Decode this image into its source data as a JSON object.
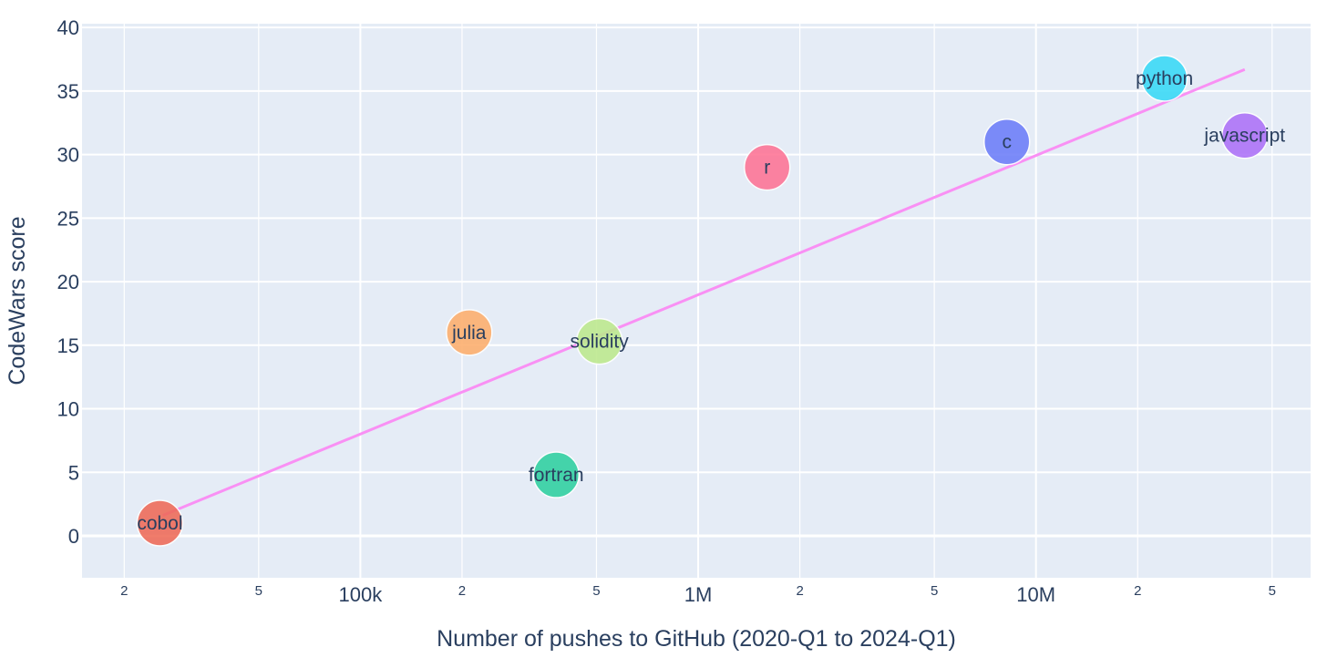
{
  "chart_data": {
    "type": "scatter",
    "xlabel": "Number of pushes to GitHub (2020-Q1 to 2024-Q1)",
    "ylabel": "CodeWars score",
    "x_scale": "log",
    "xlim": [
      15000,
      65000000
    ],
    "ylim": [
      -3.3,
      40.3
    ],
    "grid": true,
    "y_ticks": [
      {
        "value": 0,
        "label": "0"
      },
      {
        "value": 5,
        "label": "5"
      },
      {
        "value": 10,
        "label": "10"
      },
      {
        "value": 15,
        "label": "15"
      },
      {
        "value": 20,
        "label": "20"
      },
      {
        "value": 25,
        "label": "25"
      },
      {
        "value": 30,
        "label": "30"
      },
      {
        "value": 35,
        "label": "35"
      },
      {
        "value": 40,
        "label": "40"
      }
    ],
    "x_ticks_major": [
      {
        "value": 100000,
        "label": "100k"
      },
      {
        "value": 1000000,
        "label": "1M"
      },
      {
        "value": 10000000,
        "label": "10M"
      }
    ],
    "x_ticks_minor": [
      {
        "value": 20000,
        "label": "2"
      },
      {
        "value": 50000,
        "label": "5"
      },
      {
        "value": 200000,
        "label": "2"
      },
      {
        "value": 500000,
        "label": "5"
      },
      {
        "value": 2000000,
        "label": "2"
      },
      {
        "value": 5000000,
        "label": "5"
      },
      {
        "value": 20000000,
        "label": "2"
      },
      {
        "value": 50000000,
        "label": "5"
      }
    ],
    "points": [
      {
        "label": "cobol",
        "x": 25500,
        "y": 1.0,
        "color": "#ef6a57"
      },
      {
        "label": "julia",
        "x": 210000,
        "y": 16.0,
        "color": "#fdae6c"
      },
      {
        "label": "fortran",
        "x": 380000,
        "y": 4.8,
        "color": "#2ed0a0"
      },
      {
        "label": "solidity",
        "x": 510000,
        "y": 15.3,
        "color": "#bde98d"
      },
      {
        "label": "r",
        "x": 1600000,
        "y": 29.0,
        "color": "#fe7395"
      },
      {
        "label": "c",
        "x": 8200000,
        "y": 31.0,
        "color": "#6c7df9"
      },
      {
        "label": "python",
        "x": 24000000,
        "y": 36.0,
        "color": "#37d9f6"
      },
      {
        "label": "javascript",
        "x": 41500000,
        "y": 31.5,
        "color": "#ad71f8"
      }
    ],
    "trendline": {
      "color": "#f990f4",
      "points": [
        {
          "x": 26000,
          "y": 1.6
        },
        {
          "x": 41500000,
          "y": 36.7
        }
      ]
    }
  }
}
